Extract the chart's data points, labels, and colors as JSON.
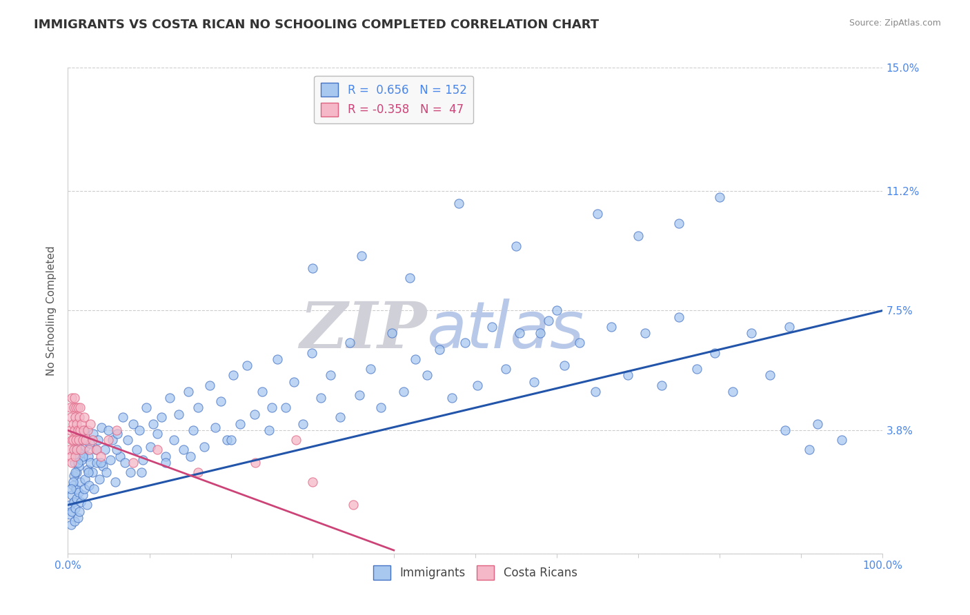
{
  "title": "IMMIGRANTS VS COSTA RICAN NO SCHOOLING COMPLETED CORRELATION CHART",
  "source_text": "Source: ZipAtlas.com",
  "ylabel": "No Schooling Completed",
  "xlim": [
    0.0,
    100.0
  ],
  "ylim": [
    0.0,
    15.0
  ],
  "yticks": [
    0.0,
    3.8,
    7.5,
    11.2,
    15.0
  ],
  "ytick_labels": [
    "",
    "3.8%",
    "7.5%",
    "11.2%",
    "15.0%"
  ],
  "blue_R": 0.656,
  "blue_N": 152,
  "pink_R": -0.358,
  "pink_N": 47,
  "blue_color": "#a8c8f0",
  "pink_color": "#f4b8c8",
  "blue_edge_color": "#4472c4",
  "pink_edge_color": "#e06080",
  "blue_line_color": "#2255aa",
  "pink_line_color": "#cc4477",
  "background_color": "#ffffff",
  "grid_color": "#cccccc",
  "title_color": "#333333",
  "axis_label_color": "#555555",
  "tick_label_color": "#4a86e8",
  "watermark_zip_color": "#d0d0d8",
  "watermark_atlas_color": "#b8c8e8",
  "legend_box_color": "#f8f8f8",
  "blue_scatter_x": [
    0.2,
    0.3,
    0.4,
    0.5,
    0.5,
    0.6,
    0.7,
    0.7,
    0.8,
    0.8,
    0.9,
    1.0,
    1.0,
    1.1,
    1.1,
    1.2,
    1.2,
    1.3,
    1.3,
    1.4,
    1.5,
    1.5,
    1.6,
    1.7,
    1.8,
    1.9,
    2.0,
    2.0,
    2.1,
    2.2,
    2.3,
    2.4,
    2.5,
    2.6,
    2.7,
    2.8,
    3.0,
    3.1,
    3.2,
    3.4,
    3.5,
    3.7,
    3.9,
    4.1,
    4.3,
    4.5,
    4.7,
    5.0,
    5.2,
    5.5,
    5.8,
    6.1,
    6.4,
    6.7,
    7.0,
    7.3,
    7.7,
    8.0,
    8.4,
    8.8,
    9.2,
    9.6,
    10.1,
    10.5,
    11.0,
    11.5,
    12.0,
    12.5,
    13.0,
    13.6,
    14.2,
    14.8,
    15.4,
    16.0,
    16.7,
    17.4,
    18.1,
    18.8,
    19.5,
    20.3,
    21.1,
    22.0,
    22.9,
    23.8,
    24.7,
    25.7,
    26.7,
    27.7,
    28.8,
    29.9,
    31.0,
    32.2,
    33.4,
    34.6,
    35.8,
    37.1,
    38.4,
    39.8,
    41.2,
    42.6,
    44.1,
    45.6,
    47.1,
    48.7,
    50.3,
    52.0,
    53.7,
    55.4,
    57.2,
    59.0,
    60.9,
    62.8,
    64.7,
    66.7,
    68.7,
    70.8,
    72.9,
    75.0,
    77.2,
    79.4,
    81.6,
    83.9,
    86.2,
    88.5,
    58.0,
    60.0,
    65.0,
    70.0,
    75.0,
    80.0,
    55.0,
    48.0,
    42.0,
    36.0,
    30.0,
    25.0,
    20.0,
    15.0,
    12.0,
    9.0,
    6.0,
    4.0,
    2.5,
    1.8,
    1.2,
    0.9,
    0.6,
    0.4,
    88.0,
    92.0,
    95.0,
    91.0
  ],
  "blue_scatter_y": [
    1.2,
    1.5,
    0.9,
    1.8,
    1.3,
    2.1,
    1.6,
    2.4,
    1.0,
    2.8,
    1.4,
    2.0,
    3.2,
    1.7,
    2.5,
    1.1,
    3.0,
    1.9,
    2.7,
    1.3,
    2.2,
    3.5,
    1.6,
    2.9,
    1.8,
    3.1,
    2.0,
    3.8,
    2.3,
    3.3,
    1.5,
    2.6,
    3.0,
    2.1,
    3.4,
    2.8,
    2.5,
    3.7,
    2.0,
    3.2,
    2.8,
    3.5,
    2.3,
    3.9,
    2.7,
    3.2,
    2.5,
    3.8,
    2.9,
    3.5,
    2.2,
    3.7,
    3.0,
    4.2,
    2.8,
    3.5,
    2.5,
    4.0,
    3.2,
    3.8,
    2.9,
    4.5,
    3.3,
    4.0,
    3.7,
    4.2,
    3.0,
    4.8,
    3.5,
    4.3,
    3.2,
    5.0,
    3.8,
    4.5,
    3.3,
    5.2,
    3.9,
    4.7,
    3.5,
    5.5,
    4.0,
    5.8,
    4.3,
    5.0,
    3.8,
    6.0,
    4.5,
    5.3,
    4.0,
    6.2,
    4.8,
    5.5,
    4.2,
    6.5,
    4.9,
    5.7,
    4.5,
    6.8,
    5.0,
    6.0,
    5.5,
    6.3,
    4.8,
    6.5,
    5.2,
    7.0,
    5.7,
    6.8,
    5.3,
    7.2,
    5.8,
    6.5,
    5.0,
    7.0,
    5.5,
    6.8,
    5.2,
    7.3,
    5.7,
    6.2,
    5.0,
    6.8,
    5.5,
    7.0,
    6.8,
    7.5,
    10.5,
    9.8,
    10.2,
    11.0,
    9.5,
    10.8,
    8.5,
    9.2,
    8.8,
    4.5,
    3.5,
    3.0,
    2.8,
    2.5,
    3.2,
    2.8,
    2.5,
    3.0,
    2.8,
    2.5,
    2.2,
    2.0,
    3.8,
    4.0,
    3.5,
    3.2
  ],
  "pink_scatter_x": [
    0.2,
    0.3,
    0.3,
    0.4,
    0.4,
    0.5,
    0.5,
    0.5,
    0.6,
    0.6,
    0.7,
    0.7,
    0.8,
    0.8,
    0.9,
    0.9,
    1.0,
    1.0,
    1.1,
    1.1,
    1.2,
    1.2,
    1.3,
    1.4,
    1.5,
    1.5,
    1.6,
    1.7,
    1.8,
    1.9,
    2.0,
    2.2,
    2.4,
    2.6,
    2.8,
    3.0,
    3.5,
    4.0,
    5.0,
    6.0,
    8.0,
    11.0,
    16.0,
    23.0,
    30.0,
    28.0,
    35.0
  ],
  "pink_scatter_y": [
    3.2,
    3.8,
    4.5,
    3.0,
    4.2,
    3.5,
    4.8,
    2.8,
    4.0,
    3.5,
    4.5,
    3.2,
    4.8,
    3.8,
    4.2,
    3.0,
    4.5,
    3.5,
    4.0,
    3.2,
    3.8,
    4.5,
    3.5,
    4.2,
    3.8,
    4.5,
    3.2,
    4.0,
    3.5,
    3.8,
    4.2,
    3.5,
    3.8,
    3.2,
    4.0,
    3.5,
    3.2,
    3.0,
    3.5,
    3.8,
    2.8,
    3.2,
    2.5,
    2.8,
    2.2,
    3.5,
    1.5
  ],
  "blue_trend_x": [
    0.0,
    100.0
  ],
  "blue_trend_y": [
    1.5,
    7.5
  ],
  "pink_trend_x": [
    0.0,
    40.0
  ],
  "pink_trend_y": [
    3.8,
    0.1
  ]
}
